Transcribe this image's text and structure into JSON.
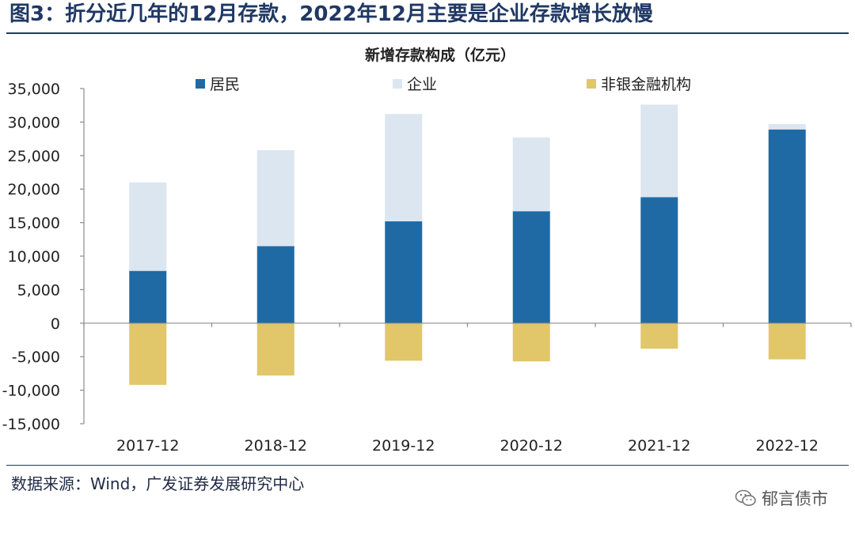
{
  "figure": {
    "title": "图3：折分近几年的12月存款，2022年12月主要是企业存款增长放慢",
    "source": "数据来源：Wind，广发证券发展研究中心",
    "watermark": "郁言债市",
    "watermark_icon": "wechat-icon"
  },
  "chart_data": {
    "type": "bar",
    "stacked": true,
    "title": "新增存款构成（亿元）",
    "categories": [
      "2017-12",
      "2018-12",
      "2019-12",
      "2020-12",
      "2021-12",
      "2022-12"
    ],
    "series": [
      {
        "name": "居民",
        "color": "#1f6aa5",
        "values": [
          7800,
          11500,
          15200,
          16700,
          18800,
          28900
        ]
      },
      {
        "name": "企业",
        "color": "#dce6f0",
        "values": [
          13200,
          14300,
          16000,
          11000,
          13800,
          800
        ]
      },
      {
        "name": "非银金融机构",
        "color": "#e1c66a",
        "values": [
          -9200,
          -7800,
          -5600,
          -5700,
          -3800,
          -5400
        ]
      }
    ],
    "ylim": [
      -15000,
      35000
    ],
    "yticks": [
      35000,
      30000,
      25000,
      20000,
      15000,
      10000,
      5000,
      0,
      -5000,
      -10000,
      -15000
    ],
    "ytick_labels": [
      "35,000",
      "30,000",
      "25,000",
      "20,000",
      "15,000",
      "10,000",
      "5,000",
      "0",
      "-5,000",
      "-10,000",
      "-15,000"
    ],
    "legend_position": "top",
    "grid": false
  }
}
